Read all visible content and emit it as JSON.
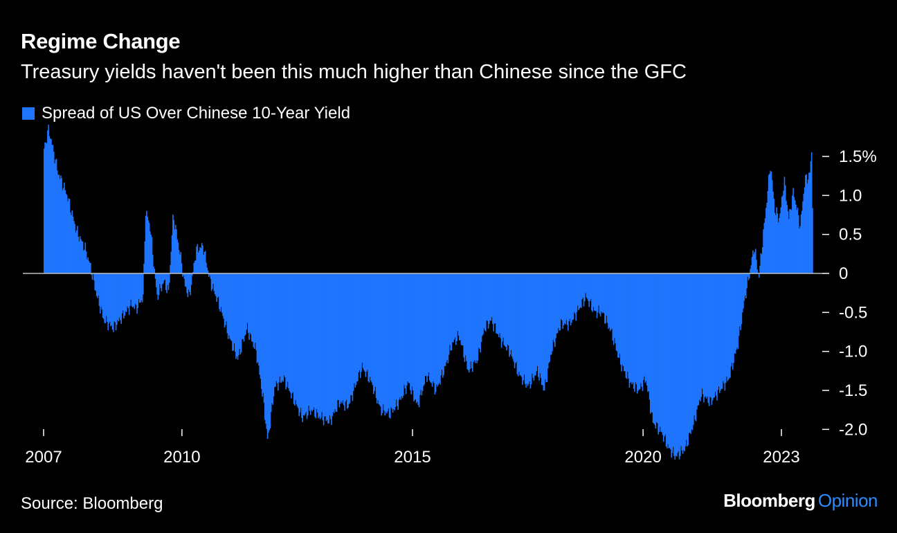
{
  "header": {
    "title": "Regime Change",
    "subtitle": "Treasury yields haven't been this much higher than Chinese since the GFC"
  },
  "footer": {
    "source": "Source: Bloomberg",
    "brand_main": "Bloomberg",
    "brand_sub": "Opinion"
  },
  "colors": {
    "bar": "#1f75fe",
    "accent": "#2e8bff",
    "zero_line": "#bfbfbf",
    "axis_text": "#ffffff"
  },
  "chart_data": {
    "type": "bar",
    "title": "Regime Change",
    "subtitle": "Treasury yields haven't been this much higher than Chinese since the GFC",
    "legend": [
      "Spread of US Over Chinese 10-Year Yield"
    ],
    "legend_position": "top-left",
    "xlabel": "",
    "ylabel": "",
    "ylim": [
      -2.4,
      1.9
    ],
    "xlim": [
      2007.0,
      2023.9
    ],
    "y_ticks": [
      {
        "value": 1.5,
        "label": "1.5%"
      },
      {
        "value": 1.0,
        "label": "1.0"
      },
      {
        "value": 0.5,
        "label": "0.5"
      },
      {
        "value": 0.0,
        "label": "0"
      },
      {
        "value": -0.5,
        "label": "-0.5"
      },
      {
        "value": -1.0,
        "label": "-1.0"
      },
      {
        "value": -1.5,
        "label": "-1.5"
      },
      {
        "value": -2.0,
        "label": "-2.0"
      }
    ],
    "x_ticks": [
      {
        "value": 2007.0,
        "label": "2007"
      },
      {
        "value": 2010.0,
        "label": "2010"
      },
      {
        "value": 2015.0,
        "label": "2015"
      },
      {
        "value": 2020.0,
        "label": "2020"
      },
      {
        "value": 2023.0,
        "label": "2023"
      }
    ],
    "grid": false,
    "series": [
      {
        "name": "Spread of US Over Chinese 10-Year Yield",
        "keypoints": [
          [
            2007.0,
            1.6
          ],
          [
            2007.1,
            1.85
          ],
          [
            2007.3,
            1.3
          ],
          [
            2007.5,
            1.0
          ],
          [
            2007.7,
            0.55
          ],
          [
            2007.9,
            0.3
          ],
          [
            2008.0,
            0.1
          ],
          [
            2008.15,
            -0.3
          ],
          [
            2008.3,
            -0.6
          ],
          [
            2008.5,
            -0.7
          ],
          [
            2008.7,
            -0.55
          ],
          [
            2008.9,
            -0.4
          ],
          [
            2009.0,
            -0.45
          ],
          [
            2009.15,
            -0.3
          ],
          [
            2009.2,
            0.8
          ],
          [
            2009.3,
            0.6
          ],
          [
            2009.45,
            -0.3
          ],
          [
            2009.6,
            -0.1
          ],
          [
            2009.7,
            -0.25
          ],
          [
            2009.8,
            0.75
          ],
          [
            2009.95,
            0.25
          ],
          [
            2010.05,
            -0.15
          ],
          [
            2010.15,
            -0.3
          ],
          [
            2010.3,
            0.3
          ],
          [
            2010.45,
            0.35
          ],
          [
            2010.6,
            -0.1
          ],
          [
            2010.8,
            -0.4
          ],
          [
            2011.0,
            -0.8
          ],
          [
            2011.2,
            -1.1
          ],
          [
            2011.4,
            -0.7
          ],
          [
            2011.6,
            -1.0
          ],
          [
            2011.75,
            -1.6
          ],
          [
            2011.85,
            -2.15
          ],
          [
            2012.0,
            -1.45
          ],
          [
            2012.2,
            -1.35
          ],
          [
            2012.4,
            -1.6
          ],
          [
            2012.6,
            -1.85
          ],
          [
            2012.8,
            -1.75
          ],
          [
            2013.0,
            -1.85
          ],
          [
            2013.2,
            -1.9
          ],
          [
            2013.4,
            -1.65
          ],
          [
            2013.6,
            -1.7
          ],
          [
            2013.8,
            -1.35
          ],
          [
            2013.9,
            -1.2
          ],
          [
            2014.1,
            -1.4
          ],
          [
            2014.3,
            -1.75
          ],
          [
            2014.5,
            -1.8
          ],
          [
            2014.7,
            -1.65
          ],
          [
            2014.9,
            -1.4
          ],
          [
            2015.1,
            -1.7
          ],
          [
            2015.3,
            -1.3
          ],
          [
            2015.5,
            -1.5
          ],
          [
            2015.7,
            -1.2
          ],
          [
            2015.85,
            -0.9
          ],
          [
            2016.0,
            -0.8
          ],
          [
            2016.2,
            -1.25
          ],
          [
            2016.4,
            -1.1
          ],
          [
            2016.55,
            -0.7
          ],
          [
            2016.7,
            -0.6
          ],
          [
            2016.9,
            -0.85
          ],
          [
            2017.1,
            -1.0
          ],
          [
            2017.3,
            -1.3
          ],
          [
            2017.5,
            -1.45
          ],
          [
            2017.7,
            -1.25
          ],
          [
            2017.85,
            -1.5
          ],
          [
            2018.0,
            -1.0
          ],
          [
            2018.2,
            -0.65
          ],
          [
            2018.4,
            -0.65
          ],
          [
            2018.6,
            -0.45
          ],
          [
            2018.75,
            -0.3
          ],
          [
            2018.95,
            -0.5
          ],
          [
            2019.1,
            -0.5
          ],
          [
            2019.3,
            -0.75
          ],
          [
            2019.5,
            -1.15
          ],
          [
            2019.7,
            -1.4
          ],
          [
            2019.9,
            -1.5
          ],
          [
            2020.05,
            -1.35
          ],
          [
            2020.2,
            -1.9
          ],
          [
            2020.4,
            -2.05
          ],
          [
            2020.55,
            -2.25
          ],
          [
            2020.7,
            -2.35
          ],
          [
            2020.9,
            -2.25
          ],
          [
            2021.1,
            -1.9
          ],
          [
            2021.25,
            -1.55
          ],
          [
            2021.45,
            -1.65
          ],
          [
            2021.65,
            -1.5
          ],
          [
            2021.85,
            -1.35
          ],
          [
            2022.05,
            -0.9
          ],
          [
            2022.2,
            -0.3
          ],
          [
            2022.3,
            0.0
          ],
          [
            2022.4,
            0.35
          ],
          [
            2022.5,
            -0.05
          ],
          [
            2022.65,
            0.8
          ],
          [
            2022.75,
            1.4
          ],
          [
            2022.85,
            0.8
          ],
          [
            2022.95,
            0.7
          ],
          [
            2023.05,
            1.2
          ],
          [
            2023.15,
            0.7
          ],
          [
            2023.25,
            1.05
          ],
          [
            2023.4,
            0.6
          ],
          [
            2023.5,
            1.2
          ],
          [
            2023.6,
            1.25
          ],
          [
            2023.65,
            1.6
          ],
          [
            2023.68,
            0.0
          ]
        ]
      }
    ]
  }
}
